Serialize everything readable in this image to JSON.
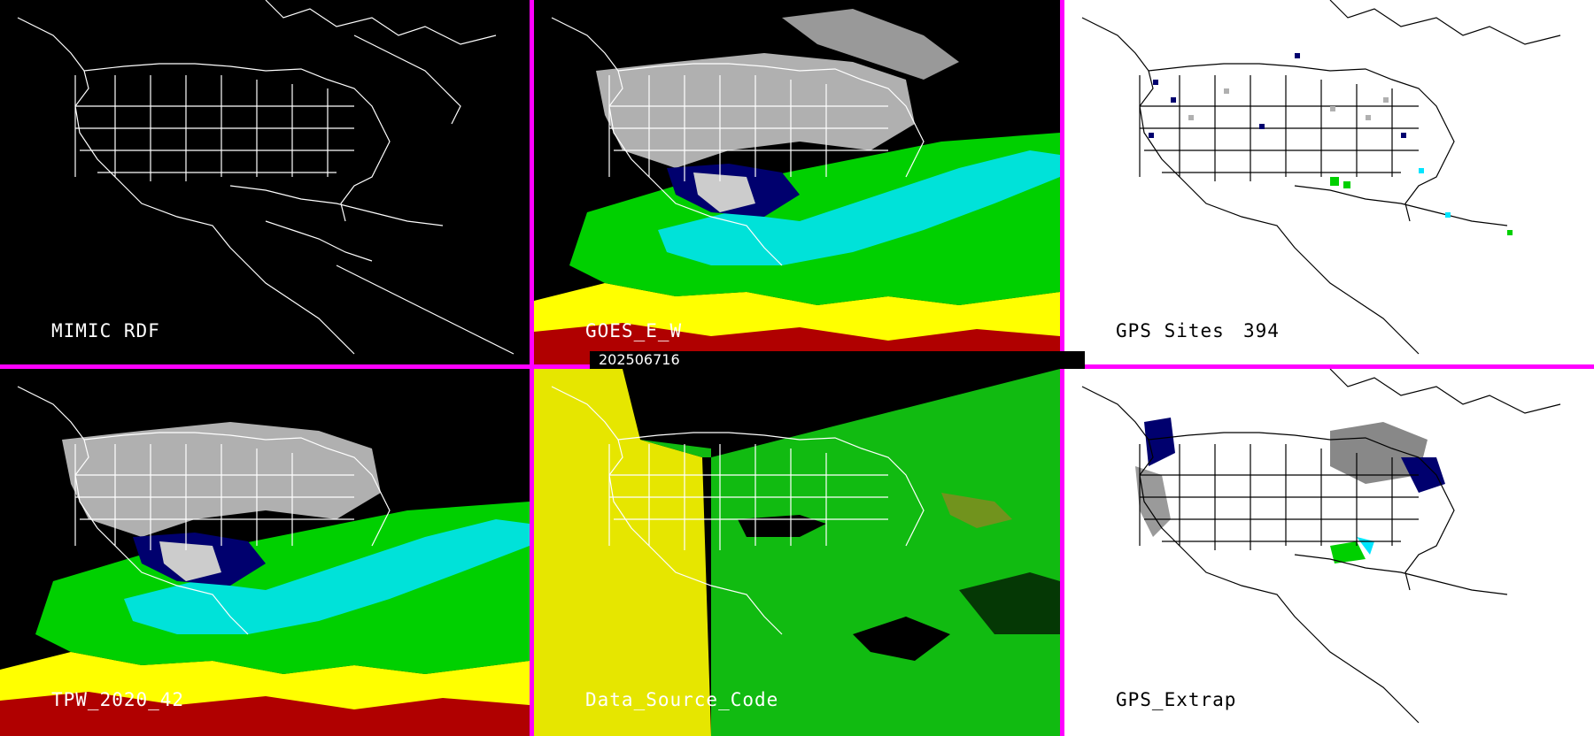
{
  "timestamp": "202506716",
  "panels": [
    {
      "id": "mimic-rdf",
      "label": "MIMIC RDF",
      "background": "#000000"
    },
    {
      "id": "goes-e-w",
      "label": "GOES_E_W",
      "background": "#000000"
    },
    {
      "id": "gps-sites",
      "label": "GPS Sites",
      "count": "394",
      "background": "#ffffff"
    },
    {
      "id": "tpw-2020-42",
      "label": "TPW_2020_42",
      "background": "#000000"
    },
    {
      "id": "data-source-code",
      "label": "Data_Source_Code",
      "background": "#000000"
    },
    {
      "id": "gps-extrap",
      "label": "GPS_Extrap",
      "background": "#ffffff"
    }
  ],
  "colors": {
    "divider": "#ff00ff",
    "coastline_dark": "#ffffff",
    "coastline_light": "#000000",
    "tpw_red": "#b00000",
    "tpw_yellow": "#ffff00",
    "tpw_green": "#00d000",
    "tpw_cyan": "#00e5ff",
    "tpw_navy": "#00006e",
    "tpw_gray": "#b0b0b0",
    "source_yellow": "#e6e600",
    "source_green": "#11bb11",
    "source_olive": "#8a8a20"
  }
}
